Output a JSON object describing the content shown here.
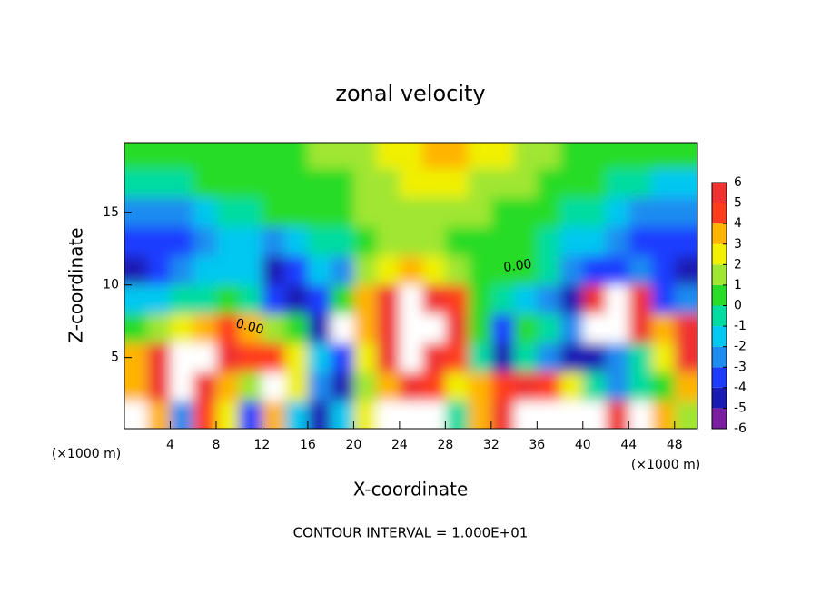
{
  "chart_data": {
    "type": "heatmap",
    "title": "zonal velocity",
    "x_label": "X-coordinate",
    "y_label": "Z-coordinate",
    "x_unit": "(×1000 m)",
    "x_unit_right": "(×1000 m)",
    "footnote": "CONTOUR INTERVAL = 1.000E+01",
    "annotations": [
      "0.00",
      "0.00"
    ],
    "x": [
      1,
      3,
      5,
      7,
      9,
      11,
      13,
      15,
      17,
      19,
      21,
      23,
      25,
      27,
      29,
      31,
      33,
      35,
      37,
      39,
      41,
      43,
      45,
      47,
      49
    ],
    "y": [
      19,
      17,
      15,
      13,
      11,
      9,
      7,
      5,
      3,
      1
    ],
    "z": [
      [
        0,
        0,
        0,
        0,
        0.5,
        0.5,
        0.5,
        0.5,
        1,
        1,
        1.5,
        2,
        2.5,
        3,
        3,
        2.5,
        2,
        1.5,
        1,
        0.5,
        0.5,
        0,
        0,
        0,
        0
      ],
      [
        -1,
        -1,
        -0.5,
        0,
        0,
        0,
        0,
        0,
        0.5,
        0.5,
        1,
        1.5,
        2,
        2,
        2,
        1.5,
        1,
        1,
        0.5,
        0,
        0,
        -0.5,
        -1,
        -1.5,
        -1.5
      ],
      [
        -3,
        -3,
        -2.5,
        -1.5,
        -1,
        -0.5,
        0,
        0,
        0,
        0.5,
        1,
        1,
        1.5,
        1.5,
        1,
        1,
        0.5,
        0.5,
        0,
        -0.5,
        -1,
        -2,
        -2.5,
        -3,
        -3
      ],
      [
        -4,
        -4,
        -3.5,
        -2.5,
        -2,
        -2,
        -3,
        -2,
        -1,
        -0.5,
        0.5,
        1,
        1,
        1,
        0.5,
        0.5,
        0.5,
        0.5,
        -0.5,
        -1.5,
        -2,
        -3,
        -3.5,
        -4,
        -4
      ],
      [
        -5,
        -4,
        -3,
        -2,
        -1.5,
        -2,
        -5,
        -4,
        -2,
        -3,
        1,
        2,
        3,
        2,
        1,
        0,
        0,
        0,
        -1,
        -3,
        -4,
        -4,
        -3,
        -4,
        -5
      ],
      [
        -2,
        -1.5,
        -1,
        -0.5,
        0,
        -1,
        -4,
        -5,
        -4,
        0,
        3,
        6,
        7,
        6,
        4,
        0,
        -1,
        -2,
        -3,
        -5,
        6,
        7,
        6,
        -4,
        -3
      ],
      [
        0,
        1,
        2,
        3,
        4,
        3,
        1,
        0,
        -5,
        7,
        3,
        6,
        7,
        7,
        5,
        0,
        -4,
        0,
        -1,
        -3,
        7,
        7,
        5,
        3,
        5
      ],
      [
        3,
        5,
        7,
        7,
        5,
        4,
        4,
        2,
        -2,
        -4,
        2,
        5,
        7,
        6,
        4,
        -1,
        -5,
        -1,
        -3,
        -5,
        -5,
        -3,
        -1,
        2,
        5
      ],
      [
        3,
        5,
        7,
        6,
        3,
        1,
        7,
        2,
        -3,
        -5,
        1,
        3,
        5,
        4,
        2,
        3,
        4,
        6,
        4,
        2,
        -1,
        -3,
        -1,
        0,
        3
      ],
      [
        7,
        3,
        -3,
        4,
        2,
        -4,
        3,
        -2,
        -5,
        -2,
        2,
        7,
        7,
        7,
        -1,
        3,
        5,
        7,
        7,
        7,
        7,
        5,
        7,
        3,
        1
      ]
    ],
    "xlim": [
      0,
      50
    ],
    "ylim": [
      0.1,
      19.8
    ],
    "xticks": [
      4,
      8,
      12,
      16,
      20,
      24,
      28,
      32,
      36,
      40,
      44,
      48
    ],
    "yticks": [
      5,
      10,
      15
    ],
    "clim": [
      -6,
      6
    ],
    "cticks": [
      -6,
      -5,
      -4,
      -3,
      -2,
      -1,
      0,
      1,
      2,
      3,
      4,
      5,
      6
    ],
    "colorscale": [
      "#7a1fa0",
      "#1a1ab4",
      "#1e3cff",
      "#1e8cf0",
      "#00c8f0",
      "#00dca0",
      "#28dc28",
      "#a0e632",
      "#f0f000",
      "#ffb400",
      "#ff3c1e",
      "#f03232"
    ],
    "over_color": "#ffffff",
    "under_color": "#ffffff"
  }
}
